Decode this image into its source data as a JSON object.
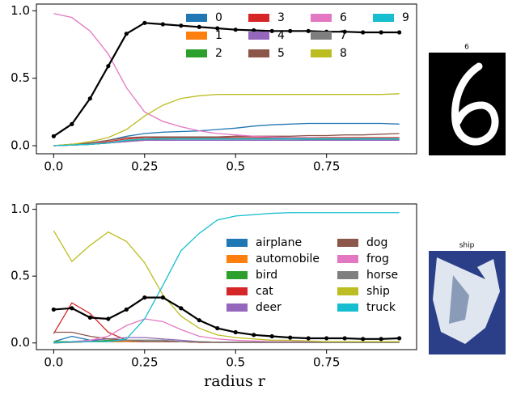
{
  "chart_data": [
    {
      "type": "line",
      "image_title": "6",
      "x": [
        0,
        0.05,
        0.1,
        0.15,
        0.2,
        0.25,
        0.3,
        0.35,
        0.4,
        0.45,
        0.5,
        0.55,
        0.6,
        0.65,
        0.7,
        0.75,
        0.8,
        0.85,
        0.9,
        0.95
      ],
      "xlim": [
        -0.0475,
        0.9975
      ],
      "ylim": [
        -0.06,
        1.05
      ],
      "xticks": [
        {
          "value": 0,
          "label": "0.0"
        },
        0.25,
        0.5,
        0.75
      ],
      "yticks": [
        {
          "value": 0,
          "label": "0.0"
        },
        0.5,
        {
          "value": 1,
          "label": "1.0"
        }
      ],
      "legend_columns": 4,
      "series": [
        {
          "name": "0",
          "color": "#1f77b4",
          "values": [
            0,
            0.01,
            0.02,
            0.04,
            0.07,
            0.09,
            0.1,
            0.105,
            0.11,
            0.12,
            0.13,
            0.145,
            0.155,
            0.16,
            0.165,
            0.165,
            0.165,
            0.165,
            0.165,
            0.16
          ]
        },
        {
          "name": "1",
          "color": "#ff7f0e",
          "values": [
            0,
            0.005,
            0.01,
            0.02,
            0.03,
            0.04,
            0.045,
            0.05,
            0.05,
            0.05,
            0.05,
            0.05,
            0.05,
            0.05,
            0.05,
            0.05,
            0.05,
            0.05,
            0.05,
            0.05
          ]
        },
        {
          "name": "2",
          "color": "#2ca02c",
          "values": [
            0,
            0.005,
            0.01,
            0.02,
            0.035,
            0.045,
            0.05,
            0.05,
            0.05,
            0.05,
            0.05,
            0.05,
            0.05,
            0.05,
            0.045,
            0.045,
            0.045,
            0.045,
            0.045,
            0.045
          ]
        },
        {
          "name": "3",
          "color": "#d62728",
          "values": [
            0,
            0.005,
            0.01,
            0.03,
            0.05,
            0.06,
            0.06,
            0.06,
            0.06,
            0.06,
            0.06,
            0.06,
            0.06,
            0.06,
            0.06,
            0.06,
            0.06,
            0.06,
            0.06,
            0.06
          ]
        },
        {
          "name": "4",
          "color": "#9467bd",
          "values": [
            0,
            0.005,
            0.01,
            0.02,
            0.03,
            0.04,
            0.04,
            0.04,
            0.04,
            0.04,
            0.04,
            0.04,
            0.04,
            0.04,
            0.04,
            0.04,
            0.04,
            0.04,
            0.04,
            0.04
          ]
        },
        {
          "name": "5",
          "color": "#8c564b",
          "values": [
            0,
            0.01,
            0.02,
            0.04,
            0.06,
            0.065,
            0.065,
            0.065,
            0.065,
            0.065,
            0.07,
            0.07,
            0.07,
            0.07,
            0.075,
            0.075,
            0.08,
            0.08,
            0.085,
            0.09
          ]
        },
        {
          "name": "6",
          "color": "#e377c2",
          "values": [
            0.98,
            0.95,
            0.85,
            0.68,
            0.43,
            0.25,
            0.18,
            0.14,
            0.11,
            0.09,
            0.08,
            0.07,
            0.065,
            0.06,
            0.06,
            0.055,
            0.055,
            0.05,
            0.05,
            0.05
          ]
        },
        {
          "name": "7",
          "color": "#7f7f7f",
          "values": [
            0,
            0.005,
            0.01,
            0.02,
            0.04,
            0.05,
            0.055,
            0.055,
            0.055,
            0.055,
            0.055,
            0.055,
            0.055,
            0.055,
            0.055,
            0.055,
            0.055,
            0.055,
            0.055,
            0.055
          ]
        },
        {
          "name": "8",
          "color": "#bcbd22",
          "values": [
            0,
            0.01,
            0.03,
            0.06,
            0.12,
            0.22,
            0.3,
            0.35,
            0.37,
            0.38,
            0.38,
            0.38,
            0.38,
            0.38,
            0.38,
            0.38,
            0.38,
            0.38,
            0.38,
            0.385
          ]
        },
        {
          "name": "9",
          "color": "#17becf",
          "values": [
            0,
            0.005,
            0.01,
            0.02,
            0.04,
            0.05,
            0.05,
            0.05,
            0.05,
            0.05,
            0.05,
            0.05,
            0.05,
            0.05,
            0.05,
            0.05,
            0.05,
            0.05,
            0.05,
            0.05
          ]
        },
        {
          "color": "#000000",
          "marker": true,
          "values": [
            0.07,
            0.16,
            0.35,
            0.59,
            0.83,
            0.91,
            0.9,
            0.89,
            0.88,
            0.87,
            0.86,
            0.855,
            0.85,
            0.85,
            0.85,
            0.845,
            0.845,
            0.84,
            0.84,
            0.84
          ]
        }
      ]
    },
    {
      "type": "line",
      "image_title": "ship",
      "xlabel": "radius r",
      "x": [
        0,
        0.05,
        0.1,
        0.15,
        0.2,
        0.25,
        0.3,
        0.35,
        0.4,
        0.45,
        0.5,
        0.55,
        0.6,
        0.65,
        0.7,
        0.75,
        0.8,
        0.85,
        0.9,
        0.95
      ],
      "xlim": [
        -0.0475,
        0.9975
      ],
      "ylim": [
        -0.05,
        1.04
      ],
      "xticks": [
        {
          "value": 0,
          "label": "0.0"
        },
        0.25,
        0.5,
        0.75
      ],
      "yticks": [
        {
          "value": 0,
          "label": "0.0"
        },
        0.5,
        {
          "value": 1,
          "label": "1.0"
        }
      ],
      "legend_columns": 2,
      "series": [
        {
          "name": "airplane",
          "color": "#1f77b4",
          "values": [
            0.01,
            0.05,
            0.02,
            0.01,
            0.01,
            0.01,
            0.01,
            0.01,
            0.005,
            0.005,
            0.005,
            0.005,
            0.005,
            0.005,
            0.005,
            0.005,
            0.005,
            0.005,
            0.005,
            0.005
          ]
        },
        {
          "name": "automobile",
          "color": "#ff7f0e",
          "values": [
            0,
            0.005,
            0.01,
            0.01,
            0.01,
            0.01,
            0.01,
            0.01,
            0.005,
            0.005,
            0.005,
            0.005,
            0.005,
            0.005,
            0.005,
            0.005,
            0.005,
            0.005,
            0.005,
            0.005
          ]
        },
        {
          "name": "bird",
          "color": "#2ca02c",
          "values": [
            0.01,
            0.01,
            0.01,
            0.02,
            0.02,
            0.02,
            0.02,
            0.01,
            0.01,
            0.005,
            0.005,
            0.005,
            0.005,
            0.005,
            0.005,
            0.005,
            0.005,
            0.005,
            0.005,
            0.005
          ]
        },
        {
          "name": "cat",
          "color": "#d62728",
          "values": [
            0.07,
            0.3,
            0.22,
            0.08,
            0.02,
            0.01,
            0.01,
            0.01,
            0.005,
            0.005,
            0.005,
            0.005,
            0.005,
            0.005,
            0.005,
            0.005,
            0.005,
            0.005,
            0.005,
            0.005
          ]
        },
        {
          "name": "deer",
          "color": "#9467bd",
          "values": [
            0,
            0.01,
            0.02,
            0.03,
            0.04,
            0.04,
            0.03,
            0.02,
            0.01,
            0.005,
            0.005,
            0.005,
            0.005,
            0.005,
            0.005,
            0.005,
            0.005,
            0.005,
            0.005,
            0.005
          ]
        },
        {
          "name": "dog",
          "color": "#8c564b",
          "values": [
            0.08,
            0.08,
            0.05,
            0.03,
            0.02,
            0.01,
            0.01,
            0.01,
            0.005,
            0.005,
            0.005,
            0.005,
            0.005,
            0.005,
            0.005,
            0.005,
            0.005,
            0.005,
            0.005,
            0.005
          ]
        },
        {
          "name": "frog",
          "color": "#e377c2",
          "values": [
            0,
            0.01,
            0.02,
            0.05,
            0.13,
            0.18,
            0.16,
            0.1,
            0.05,
            0.03,
            0.02,
            0.015,
            0.01,
            0.01,
            0.01,
            0.01,
            0.01,
            0.01,
            0.01,
            0.01
          ]
        },
        {
          "name": "horse",
          "color": "#7f7f7f",
          "values": [
            0,
            0.005,
            0.01,
            0.01,
            0.02,
            0.02,
            0.02,
            0.01,
            0.01,
            0.005,
            0.005,
            0.005,
            0.005,
            0.005,
            0.005,
            0.005,
            0.005,
            0.005,
            0.005,
            0.005
          ]
        },
        {
          "name": "ship",
          "color": "#bcbd22",
          "values": [
            0.84,
            0.61,
            0.73,
            0.83,
            0.76,
            0.6,
            0.36,
            0.2,
            0.11,
            0.06,
            0.04,
            0.03,
            0.02,
            0.02,
            0.015,
            0.01,
            0.01,
            0.01,
            0.01,
            0.01
          ]
        },
        {
          "name": "truck",
          "color": "#17becf",
          "values": [
            0,
            0.01,
            0.01,
            0.01,
            0.03,
            0.18,
            0.43,
            0.69,
            0.82,
            0.92,
            0.95,
            0.96,
            0.97,
            0.975,
            0.975,
            0.975,
            0.975,
            0.975,
            0.975,
            0.975
          ]
        },
        {
          "color": "#000000",
          "marker": true,
          "values": [
            0.25,
            0.26,
            0.19,
            0.18,
            0.25,
            0.34,
            0.34,
            0.26,
            0.17,
            0.11,
            0.08,
            0.06,
            0.05,
            0.04,
            0.035,
            0.035,
            0.035,
            0.03,
            0.03,
            0.035
          ]
        }
      ]
    }
  ]
}
